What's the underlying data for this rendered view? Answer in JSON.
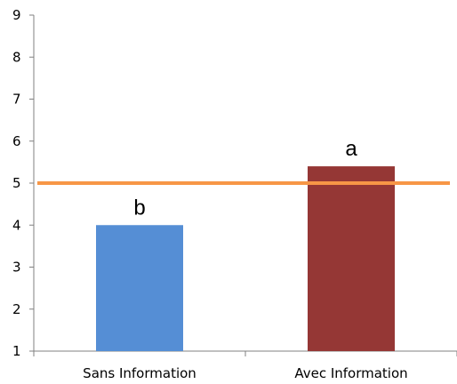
{
  "chart_data": {
    "type": "bar",
    "categories": [
      "Sans Information",
      "Avec Information"
    ],
    "values": [
      4.0,
      5.4
    ],
    "data_labels": [
      "b",
      "a"
    ],
    "bar_colors": [
      "#558ed5",
      "#953735"
    ],
    "reference_line": {
      "value": 5,
      "color": "#f79646"
    },
    "ylim": [
      1,
      9
    ],
    "yticks": [
      "1",
      "2",
      "3",
      "4",
      "5",
      "6",
      "7",
      "8",
      "9"
    ],
    "title": "",
    "xlabel": "",
    "ylabel": "",
    "grid": false,
    "legend": "none"
  }
}
